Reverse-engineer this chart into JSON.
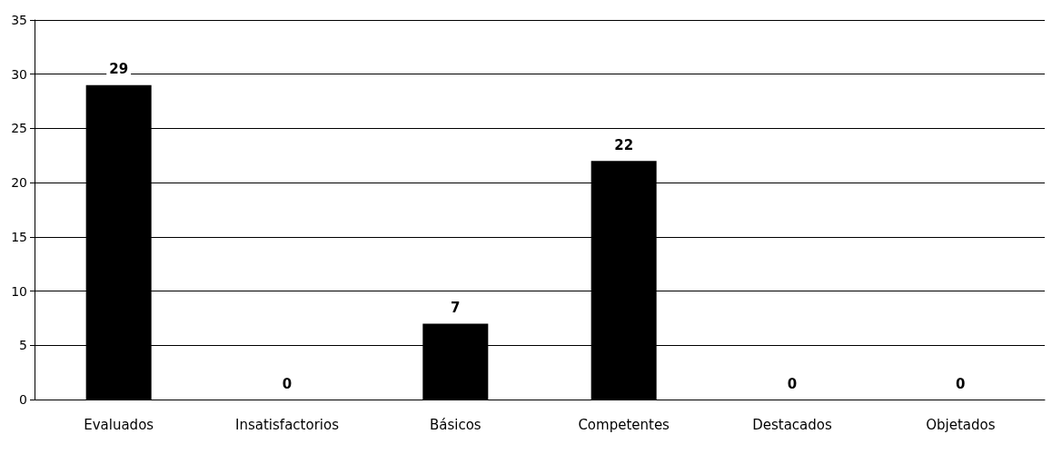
{
  "chart_data": {
    "type": "bar",
    "categories": [
      "Evaluados",
      "Insatisfactorios",
      "Básicos",
      "Competentes",
      "Destacados",
      "Objetados"
    ],
    "values": [
      29,
      0,
      7,
      22,
      0,
      0
    ],
    "color": "#000000",
    "ylim": [
      0,
      35
    ],
    "yticks": [
      0,
      5,
      10,
      15,
      20,
      25,
      30,
      35
    ],
    "grid": "y",
    "data_labels": true
  }
}
